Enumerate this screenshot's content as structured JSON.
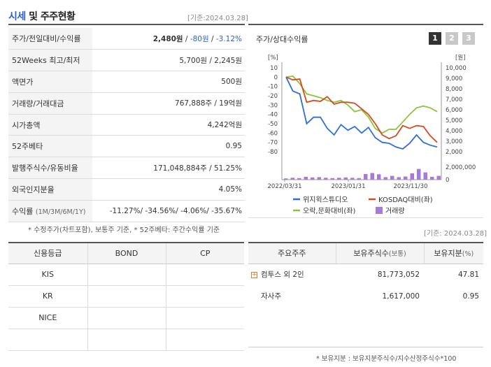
{
  "header": {
    "title_blue": "시세",
    "title_rest": " 및 주주현황",
    "base_date": "[기준:2024.03.28]"
  },
  "quote_rows": [
    {
      "label": "주가/전일대비/수익률",
      "value": ""
    },
    {
      "label": "52Weeks 최고/최저",
      "value": "5,700원 / 2,245원"
    },
    {
      "label": "액면가",
      "value": "500원"
    },
    {
      "label": "거래량/거래대금",
      "value": "767,888주 / 19억원"
    },
    {
      "label": "시가총액",
      "value": "4,242억원"
    },
    {
      "label": "52주베타",
      "value": "0.95"
    },
    {
      "label": "발행주식수/유동비율",
      "value": "171,048,884주 / 51.25%"
    },
    {
      "label": "외국인지분율",
      "value": "4.05%"
    },
    {
      "label": "수익률",
      "label_sub": "(1M/3M/6M/1Y)",
      "value": "-11.27%/ -34.56%/ -4.06%/ -35.67%"
    }
  ],
  "price": {
    "price": "2,480원",
    "sep1": " / ",
    "change": "-80원",
    "sep2": " / ",
    "rate": "-3.12%"
  },
  "note1": "* 수정주가(차트포함), 보통주 기준, * 52주베타: 주간수익률 기준",
  "chart": {
    "title": "주가/상대수익률",
    "tabs": [
      "1",
      "2",
      "3"
    ],
    "colors": {
      "stock": "#2f6fd6",
      "kosdaq": "#d24c1f",
      "index": "#8cc43a",
      "volume": "#a87ad8"
    }
  },
  "chart_data": {
    "type": "line",
    "left_axis_label": "[%]",
    "right_axis_label": "[원]",
    "left_ylim": [
      -80,
      10
    ],
    "right_ylim": [
      2000,
      10000
    ],
    "left_ticks": [
      "10",
      "0",
      "-10",
      "-20",
      "-30",
      "-40",
      "-50",
      "-60",
      "-70",
      "-80"
    ],
    "right_ticks": [
      "10,000",
      "9,000",
      "8,000",
      "7,000",
      "6,000",
      "5,000",
      "4,000",
      "3,000",
      "2,000"
    ],
    "volume_ticks": [
      "2,000,000",
      "0"
    ],
    "x_ticks": [
      "2022/03/31",
      "2023/01/31",
      "2023/11/30"
    ],
    "series": [
      {
        "name": "위지윅스튜디오",
        "values": [
          0,
          -15,
          -18,
          -50,
          -43,
          -43,
          -55,
          -62,
          -51,
          -57,
          -53,
          -60,
          -54,
          -65,
          -70,
          -71,
          -75,
          -77,
          -71,
          -62,
          -70,
          -73,
          -75
        ]
      },
      {
        "name": "KOSDAQ대비(좌)",
        "values": [
          0,
          -3,
          -2,
          -27,
          -25,
          -26,
          -21,
          -29,
          -27,
          -27,
          -28,
          -34,
          -40,
          -50,
          -62,
          -66,
          -63,
          -52,
          -55,
          -52,
          -53,
          -63,
          -70
        ]
      },
      {
        "name": "오락,문화대비(좌)",
        "values": [
          0,
          1,
          -7,
          -18,
          -20,
          -22,
          -25,
          -27,
          -25,
          -30,
          -37,
          -35,
          -43,
          -55,
          -60,
          -56,
          -56,
          -48,
          -40,
          -33,
          -31,
          -33,
          -37
        ]
      },
      {
        "name": "거래량",
        "type": "bar",
        "values": [
          200000,
          300000,
          250000,
          450000,
          350000,
          400000,
          300000,
          250000,
          300000,
          350000,
          300000,
          250000,
          900000,
          1050000,
          850000,
          400000,
          600000,
          400000,
          500000,
          1000000,
          1700000,
          1150000,
          450000,
          600000
        ]
      }
    ]
  },
  "legend": [
    {
      "label": "위지윅스튜디오",
      "kind": "line",
      "color": "#2f6fd6"
    },
    {
      "label": "KOSDAQ대비(좌)",
      "kind": "line",
      "color": "#d24c1f"
    },
    {
      "label": "오락,문화대비(좌)",
      "kind": "line",
      "color": "#8cc43a"
    },
    {
      "label": "거래량",
      "kind": "bar",
      "color": "#a87ad8"
    }
  ],
  "base_date2": "[기준: 2024.03.28]",
  "credit": {
    "headers": [
      "신용등급",
      "BOND",
      "CP"
    ],
    "rows": [
      [
        "KIS",
        "",
        ""
      ],
      [
        "KR",
        "",
        ""
      ],
      [
        "NICE",
        "",
        ""
      ],
      [
        "",
        "",
        ""
      ]
    ]
  },
  "holders": {
    "headers": {
      "h1": "주요주주",
      "h2": "보유주식수",
      "h2_unit": "(보통)",
      "h3": "보유지분",
      "h3_unit": "(%)"
    },
    "rows": [
      {
        "name": "컴투스 외 2인",
        "shares": "81,773,052",
        "pct": "47.81"
      },
      {
        "name": "자사주",
        "shares": "1,617,000",
        "pct": "0.95"
      }
    ]
  },
  "note2": "* 보유지분 : 보유지분주식수/지수산정주식수*100"
}
